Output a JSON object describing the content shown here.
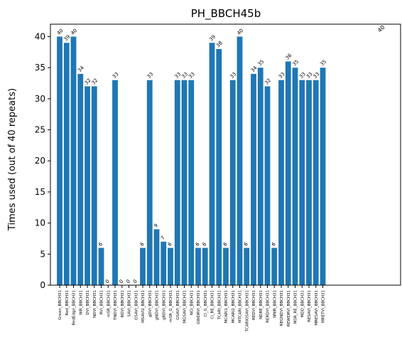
{
  "chart_data": {
    "type": "bar",
    "title": "PH_BBCH45b",
    "xlabel": "",
    "ylabel": "Times used (out of 40 repeats)",
    "ylim": [
      0,
      42
    ],
    "yticks": [
      0,
      5,
      10,
      15,
      20,
      25,
      30,
      35,
      40
    ],
    "grid": false,
    "bar_color": "#1f77b4",
    "categories": [
      "Green_BBCH31",
      "Red_BBCH31",
      "RedEdge_BBCH31",
      "NIR_BBCH31",
      "DVI_BBCH31",
      "NDVI_BBCH31",
      "RVI_BBCH31",
      "mSR_BBCH31",
      "TNDVI_BBCH31",
      "RDVI_BBCH31",
      "SAVI_BBCH31",
      "OSAVI_BBCH31",
      "MSAVI2_BBCH31",
      "gDVI_BBCH31",
      "gNDVI_BBCH31",
      "gRDVI_BBCH31",
      "mSR_G_BBCH31",
      "GSAVI_BBCH31",
      "MGSAVI_BBCH31",
      "NGI_BBCH31",
      "GWDRVI_BBCH31",
      "CI_G_BBCH31",
      "CI_RE_BBCH31",
      "TCARI_BBCH31",
      "MCARI1_BBCH31",
      "MCARI2_BBCH31",
      "MTCARI_BBCH31",
      "TCARIOSAVI_BBCH31",
      "REDVI_BBCH31",
      "NDRE_BBCH31",
      "RERDVI_BBCH31",
      "NNIR_BBCH31",
      "REGNDVI_BBCH31",
      "REWDRVI_BBCH31",
      "MSR_RE_BBCH31",
      "MDD_BBCH31",
      "RESAVI_BBCH31",
      "MRESAVI_BBCH31",
      "MRETVI_BBCH31"
    ],
    "values": [
      40,
      39,
      40,
      34,
      32,
      32,
      6,
      0,
      33,
      0,
      0,
      0,
      6,
      33,
      9,
      7,
      6,
      33,
      33,
      33,
      6,
      6,
      39,
      38,
      6,
      33,
      40,
      6,
      34,
      35,
      32,
      6,
      33,
      36,
      35,
      33,
      33,
      33,
      35
    ],
    "annotations": [
      {
        "text": "40"
      }
    ]
  }
}
